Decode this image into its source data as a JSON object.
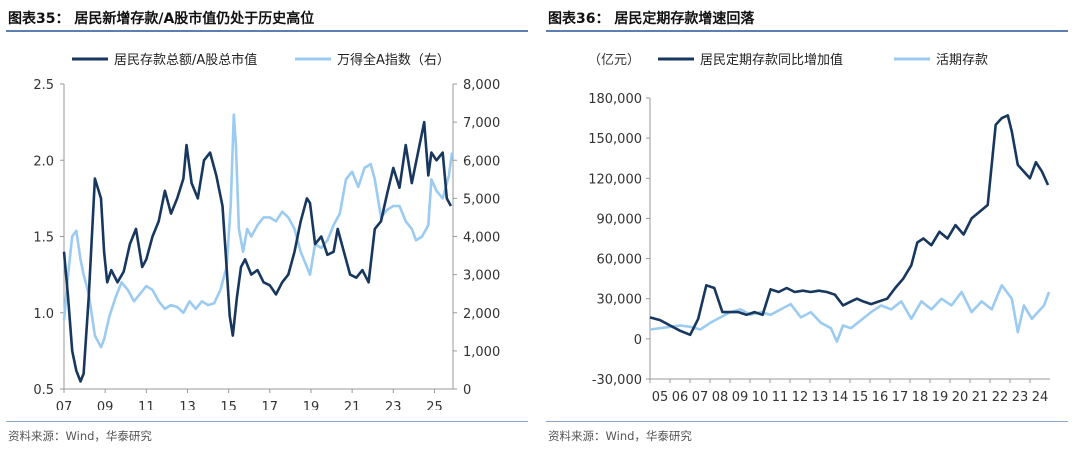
{
  "panels": [
    {
      "title": "图表35：  居民新增存款/A股市值仍处于历史高位",
      "source": "资料来源：Wind，华泰研究"
    },
    {
      "title": "图表36：  居民定期存款增速回落",
      "source": "资料来源：Wind，华泰研究"
    }
  ],
  "chart_data": [
    {
      "type": "line",
      "title": "图表35：  居民新增存款/A股市值仍处于历史高位",
      "legend_placement": "top",
      "grid": false,
      "colors": {
        "ratio": "#17375e",
        "index": "#9ccbf1"
      },
      "x_ticks": [
        "07",
        "09",
        "11",
        "13",
        "15",
        "17",
        "19",
        "21",
        "23",
        "25"
      ],
      "xlim": [
        2007.0,
        2025.9
      ],
      "y_left": {
        "ylim": [
          0.5,
          2.5
        ],
        "ticks": [
          "0.5",
          "1.0",
          "1.5",
          "2.0",
          "2.5"
        ],
        "tick_values": [
          0.5,
          1.0,
          1.5,
          2.0,
          2.5
        ]
      },
      "y_right": {
        "ylim": [
          0,
          8000
        ],
        "ticks": [
          "0",
          "1,000",
          "2,000",
          "3,000",
          "4,000",
          "5,000",
          "6,000",
          "7,000",
          "8,000"
        ],
        "tick_values": [
          0,
          1000,
          2000,
          3000,
          4000,
          5000,
          6000,
          7000,
          8000
        ]
      },
      "series": [
        {
          "name": "居民存款总额/A股总市值",
          "axis": "left",
          "x": [
            2007.0,
            2007.2,
            2007.4,
            2007.6,
            2007.8,
            2007.95,
            2008.2,
            2008.5,
            2008.8,
            2008.95,
            2009.1,
            2009.3,
            2009.6,
            2009.9,
            2010.2,
            2010.5,
            2010.8,
            2011.0,
            2011.3,
            2011.6,
            2011.9,
            2012.2,
            2012.5,
            2012.8,
            2012.95,
            2013.2,
            2013.5,
            2013.8,
            2014.1,
            2014.4,
            2014.7,
            2014.9,
            2015.05,
            2015.2,
            2015.4,
            2015.6,
            2015.8,
            2016.1,
            2016.4,
            2016.7,
            2017.0,
            2017.3,
            2017.6,
            2017.9,
            2018.2,
            2018.5,
            2018.8,
            2018.95,
            2019.2,
            2019.5,
            2019.8,
            2020.1,
            2020.3,
            2020.6,
            2020.9,
            2021.2,
            2021.5,
            2021.8,
            2022.1,
            2022.4,
            2022.7,
            2023.0,
            2023.3,
            2023.6,
            2023.9,
            2024.2,
            2024.5,
            2024.7,
            2024.85,
            2025.1,
            2025.4,
            2025.6,
            2025.8
          ],
          "values": [
            1.4,
            1.1,
            0.75,
            0.62,
            0.55,
            0.6,
            1.1,
            1.88,
            1.75,
            1.4,
            1.2,
            1.28,
            1.2,
            1.27,
            1.45,
            1.55,
            1.3,
            1.35,
            1.5,
            1.6,
            1.8,
            1.65,
            1.75,
            1.88,
            2.1,
            1.85,
            1.75,
            2.0,
            2.05,
            1.9,
            1.7,
            1.3,
            0.98,
            0.85,
            1.1,
            1.3,
            1.35,
            1.25,
            1.28,
            1.2,
            1.18,
            1.12,
            1.2,
            1.25,
            1.4,
            1.6,
            1.75,
            1.72,
            1.45,
            1.5,
            1.38,
            1.4,
            1.55,
            1.4,
            1.25,
            1.23,
            1.28,
            1.2,
            1.55,
            1.6,
            1.78,
            1.95,
            1.82,
            2.1,
            1.85,
            2.05,
            2.25,
            1.9,
            2.05,
            2.0,
            2.05,
            1.75,
            1.7
          ]
        },
        {
          "name": "万得全A指数（右）",
          "axis": "right",
          "x": [
            2007.0,
            2007.2,
            2007.4,
            2007.6,
            2007.8,
            2007.95,
            2008.2,
            2008.5,
            2008.8,
            2008.95,
            2009.2,
            2009.5,
            2009.8,
            2010.1,
            2010.4,
            2010.7,
            2011.0,
            2011.3,
            2011.6,
            2011.9,
            2012.2,
            2012.5,
            2012.8,
            2013.1,
            2013.4,
            2013.7,
            2014.0,
            2014.3,
            2014.6,
            2014.9,
            2015.1,
            2015.25,
            2015.35,
            2015.5,
            2015.7,
            2015.9,
            2016.1,
            2016.4,
            2016.7,
            2017.0,
            2017.3,
            2017.6,
            2017.9,
            2018.2,
            2018.5,
            2018.8,
            2018.95,
            2019.2,
            2019.5,
            2019.8,
            2020.1,
            2020.4,
            2020.7,
            2021.0,
            2021.3,
            2021.6,
            2021.9,
            2022.1,
            2022.4,
            2022.7,
            2023.0,
            2023.3,
            2023.6,
            2023.9,
            2024.1,
            2024.4,
            2024.7,
            2024.85,
            2025.1,
            2025.4,
            2025.7,
            2025.85
          ],
          "values": [
            1800,
            3000,
            4000,
            4150,
            3400,
            3000,
            2500,
            1400,
            1100,
            1300,
            1900,
            2400,
            2800,
            2600,
            2300,
            2500,
            2700,
            2600,
            2300,
            2100,
            2200,
            2150,
            2000,
            2300,
            2100,
            2300,
            2200,
            2250,
            2600,
            3200,
            4800,
            7200,
            6400,
            4200,
            3600,
            4200,
            4000,
            4300,
            4500,
            4500,
            4400,
            4650,
            4500,
            4200,
            3600,
            3200,
            3000,
            3800,
            3700,
            3900,
            4300,
            4600,
            5500,
            5700,
            5300,
            5800,
            5900,
            5500,
            4500,
            4700,
            4800,
            4800,
            4400,
            4200,
            3900,
            4000,
            4300,
            5500,
            5200,
            5000,
            5600,
            6200
          ]
        }
      ]
    },
    {
      "type": "line",
      "title": "图表36：  居民定期存款增速回落",
      "ylabel": "（亿元）",
      "legend_placement": "top",
      "grid": false,
      "colors": {
        "time_deposit": "#17375e",
        "demand_deposit": "#9ccbf1"
      },
      "x_ticks": [
        "05",
        "06",
        "07",
        "08",
        "09",
        "10",
        "11",
        "12",
        "13",
        "14",
        "15",
        "16",
        "17",
        "18",
        "19",
        "20",
        "21",
        "22",
        "23",
        "24"
      ],
      "xlim": [
        2005.0,
        2024.9
      ],
      "ylim": [
        -30000,
        180000
      ],
      "y_ticks": [
        "-30,000",
        "0",
        "30,000",
        "60,000",
        "90,000",
        "120,000",
        "150,000",
        "180,000"
      ],
      "y_tick_values": [
        -30000,
        0,
        30000,
        60000,
        90000,
        120000,
        150000,
        180000
      ],
      "series": [
        {
          "name": "居民定期存款同比增加值",
          "x": [
            2005.0,
            2005.5,
            2006.0,
            2006.5,
            2007.0,
            2007.4,
            2007.8,
            2008.2,
            2008.6,
            2009.0,
            2009.4,
            2009.8,
            2010.2,
            2010.6,
            2011.0,
            2011.4,
            2011.8,
            2012.2,
            2012.6,
            2013.0,
            2013.4,
            2013.8,
            2014.2,
            2014.6,
            2015.0,
            2015.3,
            2015.6,
            2016.0,
            2016.4,
            2016.8,
            2017.2,
            2017.6,
            2018.0,
            2018.3,
            2018.6,
            2019.0,
            2019.4,
            2019.8,
            2020.2,
            2020.6,
            2021.0,
            2021.4,
            2021.8,
            2022.0,
            2022.2,
            2022.5,
            2022.8,
            2023.0,
            2023.3,
            2023.6,
            2023.9,
            2024.2,
            2024.5,
            2024.8
          ],
          "values": [
            16000,
            14000,
            10000,
            6000,
            3000,
            15000,
            40000,
            38000,
            20000,
            20000,
            20000,
            18000,
            20000,
            18000,
            37000,
            35000,
            38000,
            35000,
            36000,
            35000,
            36000,
            35000,
            33000,
            25000,
            28000,
            30000,
            28000,
            26000,
            28000,
            30000,
            38000,
            45000,
            55000,
            72000,
            75000,
            70000,
            80000,
            75000,
            85000,
            78000,
            90000,
            95000,
            100000,
            130000,
            160000,
            165000,
            167000,
            155000,
            130000,
            125000,
            120000,
            132000,
            125000,
            115000
          ]
        },
        {
          "name": "活期存款",
          "x": [
            2005.0,
            2005.5,
            2006.0,
            2006.5,
            2007.0,
            2007.5,
            2008.0,
            2008.5,
            2009.0,
            2009.5,
            2010.0,
            2010.5,
            2011.0,
            2011.5,
            2012.0,
            2012.5,
            2013.0,
            2013.5,
            2014.0,
            2014.3,
            2014.6,
            2015.0,
            2015.5,
            2016.0,
            2016.5,
            2017.0,
            2017.5,
            2018.0,
            2018.5,
            2019.0,
            2019.5,
            2020.0,
            2020.5,
            2021.0,
            2021.5,
            2022.0,
            2022.5,
            2023.0,
            2023.3,
            2023.6,
            2024.0,
            2024.3,
            2024.6,
            2024.85
          ],
          "values": [
            7000,
            8000,
            9000,
            10000,
            9000,
            7000,
            12000,
            16000,
            20000,
            22000,
            18000,
            20000,
            18000,
            22000,
            26000,
            16000,
            20000,
            12000,
            8000,
            -2000,
            10000,
            8000,
            14000,
            20000,
            25000,
            22000,
            28000,
            15000,
            28000,
            22000,
            30000,
            25000,
            35000,
            20000,
            28000,
            22000,
            40000,
            30000,
            5000,
            25000,
            15000,
            20000,
            25000,
            35000
          ]
        }
      ]
    }
  ]
}
